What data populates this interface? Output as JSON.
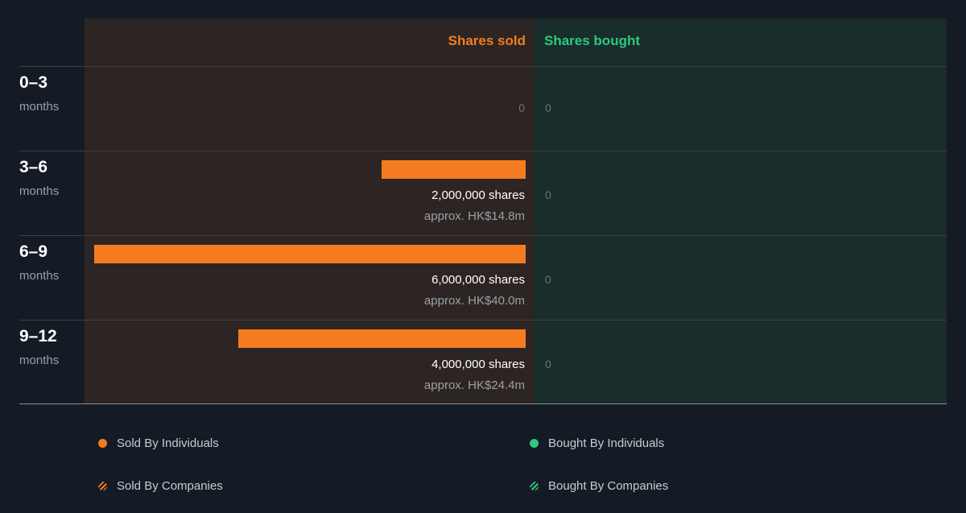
{
  "colors": {
    "sold": "#f47c1e",
    "bought": "#2dc97e"
  },
  "headers": {
    "sold": "Shares sold",
    "bought": "Shares bought"
  },
  "chart_data": {
    "type": "bar",
    "orientation": "horizontal-diverging",
    "categories": [
      "0–3 months",
      "3–6 months",
      "6–9 months",
      "9–12 months"
    ],
    "series": [
      {
        "name": "Shares sold",
        "values": [
          0,
          2000000,
          6000000,
          4000000
        ]
      },
      {
        "name": "Shares bought",
        "values": [
          0,
          0,
          0,
          0
        ]
      }
    ]
  },
  "rows": [
    {
      "period": "0–3",
      "unit": "months",
      "sold_zero": "0",
      "shares": "",
      "approx": "",
      "bought": "0"
    },
    {
      "period": "3–6",
      "unit": "months",
      "sold_zero": "",
      "shares": "2,000,000 shares",
      "approx": "approx. HK$14.8m",
      "bought": "0"
    },
    {
      "period": "6–9",
      "unit": "months",
      "sold_zero": "",
      "shares": "6,000,000 shares",
      "approx": "approx. HK$40.0m",
      "bought": "0"
    },
    {
      "period": "9–12",
      "unit": "months",
      "sold_zero": "",
      "shares": "4,000,000 shares",
      "approx": "approx. HK$24.4m",
      "bought": "0"
    }
  ],
  "legend": {
    "sold_individuals": "Sold By Individuals",
    "sold_companies": "Sold By Companies",
    "bought_individuals": "Bought By Individuals",
    "bought_companies": "Bought By Companies"
  }
}
